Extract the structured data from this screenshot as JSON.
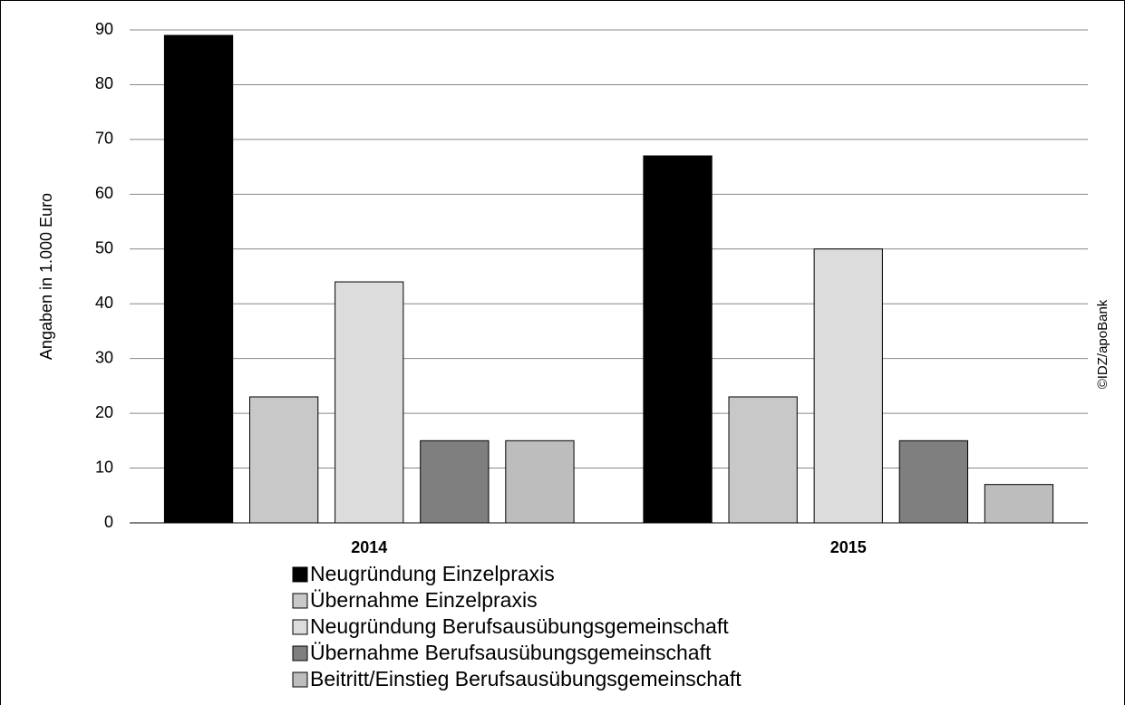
{
  "chart_data": {
    "type": "bar",
    "y_label": "Angaben in 1.000 Euro",
    "annotation": "©IDZ/apoBank",
    "categories": [
      "2014",
      "2015"
    ],
    "series": [
      {
        "name": "Neugründung Einzelpraxis",
        "color": "#000000",
        "values": [
          89,
          67
        ]
      },
      {
        "name": "Übernahme Einzelpraxis",
        "color": "#c8c8c8",
        "values": [
          23,
          23
        ]
      },
      {
        "name": "Neugründung Berufsausübungsgemeinschaft",
        "color": "#dcdcdc",
        "values": [
          44,
          50
        ]
      },
      {
        "name": "Übernahme Berufsausübungsgemeinschaft",
        "color": "#7f7f7f",
        "values": [
          15,
          15
        ]
      },
      {
        "name": "Beitritt/Einstieg Berufsausübungsgemeinschaft",
        "color": "#bdbdbd",
        "values": [
          15,
          7
        ]
      }
    ],
    "ylim": [
      0,
      90
    ],
    "yticks": [
      0,
      10,
      20,
      30,
      40,
      50,
      60,
      70,
      80,
      90
    ],
    "grid": true
  }
}
